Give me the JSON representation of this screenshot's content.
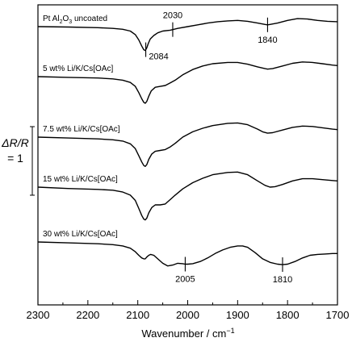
{
  "chart_data": {
    "type": "line",
    "xlabel_main": "Wavenumber / cm",
    "xlabel_sup": "−1",
    "xlim": [
      2300,
      1700
    ],
    "x_ticks": [
      2300,
      2200,
      2100,
      2000,
      1900,
      1800,
      1700
    ],
    "scale_bar": {
      "top": "ΔR/R",
      "bottom": "= 1"
    },
    "series": [
      {
        "label_pre": "Pt Al",
        "label_sub1": "2",
        "label_mid": "O",
        "label_sub2": "3",
        "label_post": " uncoated",
        "x": [
          2300,
          2240,
          2180,
          2150,
          2130,
          2115,
          2105,
          2098,
          2092,
          2088,
          2085,
          2082,
          2079,
          2075,
          2068,
          2060,
          2050,
          2035,
          2020,
          2000,
          1980,
          1960,
          1940,
          1920,
          1900,
          1880,
          1860,
          1845,
          1840,
          1835,
          1820,
          1800,
          1780,
          1760,
          1740,
          1720,
          1700
        ],
        "y": [
          0.0,
          -0.005,
          -0.012,
          -0.02,
          -0.03,
          -0.05,
          -0.09,
          -0.15,
          -0.22,
          -0.26,
          -0.27,
          -0.24,
          -0.19,
          -0.14,
          -0.1,
          -0.07,
          -0.05,
          -0.04,
          -0.02,
          0.0,
          0.02,
          0.04,
          0.055,
          0.065,
          0.07,
          0.06,
          0.04,
          0.025,
          0.02,
          0.025,
          0.04,
          0.07,
          0.09,
          0.085,
          0.07,
          0.06,
          0.055
        ]
      },
      {
        "label": "5 wt% Li/K/Cs[OAc]",
        "x": [
          2300,
          2240,
          2180,
          2150,
          2130,
          2115,
          2105,
          2098,
          2092,
          2088,
          2085,
          2082,
          2078,
          2073,
          2065,
          2055,
          2045,
          2035,
          2025,
          2010,
          1990,
          1970,
          1950,
          1920,
          1900,
          1880,
          1860,
          1845,
          1840,
          1830,
          1810,
          1790,
          1770,
          1750,
          1730,
          1710,
          1700
        ],
        "y": [
          0.0,
          -0.008,
          -0.015,
          -0.025,
          -0.04,
          -0.065,
          -0.11,
          -0.18,
          -0.25,
          -0.29,
          -0.3,
          -0.28,
          -0.22,
          -0.16,
          -0.12,
          -0.11,
          -0.1,
          -0.07,
          -0.04,
          0.02,
          0.08,
          0.12,
          0.145,
          0.16,
          0.16,
          0.14,
          0.11,
          0.09,
          0.085,
          0.09,
          0.12,
          0.15,
          0.165,
          0.16,
          0.145,
          0.13,
          0.125
        ]
      },
      {
        "label": "7.5 wt% Li/K/Cs[OAc]",
        "x": [
          2300,
          2240,
          2180,
          2150,
          2130,
          2115,
          2105,
          2098,
          2092,
          2088,
          2085,
          2082,
          2078,
          2072,
          2065,
          2055,
          2045,
          2035,
          2025,
          2010,
          1990,
          1970,
          1950,
          1920,
          1900,
          1880,
          1860,
          1850,
          1840,
          1830,
          1810,
          1790,
          1770,
          1750,
          1730,
          1710,
          1700
        ],
        "y": [
          0.0,
          -0.01,
          -0.02,
          -0.03,
          -0.045,
          -0.075,
          -0.13,
          -0.21,
          -0.28,
          -0.32,
          -0.33,
          -0.31,
          -0.25,
          -0.19,
          -0.16,
          -0.15,
          -0.14,
          -0.11,
          -0.07,
          0.0,
          0.06,
          0.1,
          0.13,
          0.155,
          0.16,
          0.14,
          0.09,
          0.06,
          0.045,
          0.05,
          0.08,
          0.11,
          0.125,
          0.12,
          0.105,
          0.09,
          0.085
        ]
      },
      {
        "label": "15 wt% Li/K/Cs[OAc]",
        "x": [
          2300,
          2240,
          2180,
          2150,
          2130,
          2115,
          2105,
          2098,
          2092,
          2088,
          2085,
          2082,
          2078,
          2072,
          2065,
          2055,
          2045,
          2035,
          2025,
          2010,
          1990,
          1970,
          1950,
          1920,
          1900,
          1880,
          1860,
          1845,
          1835,
          1825,
          1810,
          1790,
          1770,
          1750,
          1730,
          1710,
          1700
        ],
        "y": [
          0.0,
          -0.015,
          -0.025,
          -0.035,
          -0.055,
          -0.09,
          -0.15,
          -0.24,
          -0.32,
          -0.36,
          -0.37,
          -0.35,
          -0.29,
          -0.23,
          -0.2,
          -0.2,
          -0.19,
          -0.14,
          -0.09,
          -0.02,
          0.05,
          0.1,
          0.14,
          0.165,
          0.17,
          0.14,
          0.07,
          0.02,
          0.0,
          0.005,
          0.03,
          0.07,
          0.095,
          0.095,
          0.085,
          0.075,
          0.07
        ]
      },
      {
        "label": "30 wt% Li/K/Cs[OAc]",
        "x": [
          2300,
          2240,
          2180,
          2150,
          2130,
          2115,
          2105,
          2098,
          2092,
          2088,
          2085,
          2082,
          2078,
          2074,
          2068,
          2060,
          2050,
          2040,
          2030,
          2020,
          2010,
          2005,
          2000,
          1990,
          1975,
          1960,
          1945,
          1930,
          1915,
          1900,
          1890,
          1880,
          1865,
          1850,
          1835,
          1820,
          1810,
          1800,
          1785,
          1770,
          1755,
          1740,
          1725,
          1710,
          1700
        ],
        "y": [
          0.0,
          -0.01,
          -0.02,
          -0.03,
          -0.045,
          -0.07,
          -0.11,
          -0.15,
          -0.18,
          -0.19,
          -0.19,
          -0.17,
          -0.15,
          -0.14,
          -0.15,
          -0.19,
          -0.24,
          -0.27,
          -0.26,
          -0.24,
          -0.245,
          -0.25,
          -0.25,
          -0.245,
          -0.22,
          -0.18,
          -0.13,
          -0.09,
          -0.06,
          -0.045,
          -0.045,
          -0.06,
          -0.12,
          -0.19,
          -0.23,
          -0.25,
          -0.255,
          -0.25,
          -0.22,
          -0.18,
          -0.15,
          -0.14,
          -0.135,
          -0.13,
          -0.13
        ]
      }
    ],
    "annotations": [
      {
        "label": "2084",
        "series": 0,
        "x": 2084
      },
      {
        "label": "2030",
        "series": 0,
        "x": 2030
      },
      {
        "label": "1840",
        "series": 0,
        "x": 1840
      },
      {
        "label": "2005",
        "series": 4,
        "x": 2005
      },
      {
        "label": "1810",
        "series": 4,
        "x": 1810
      }
    ]
  }
}
